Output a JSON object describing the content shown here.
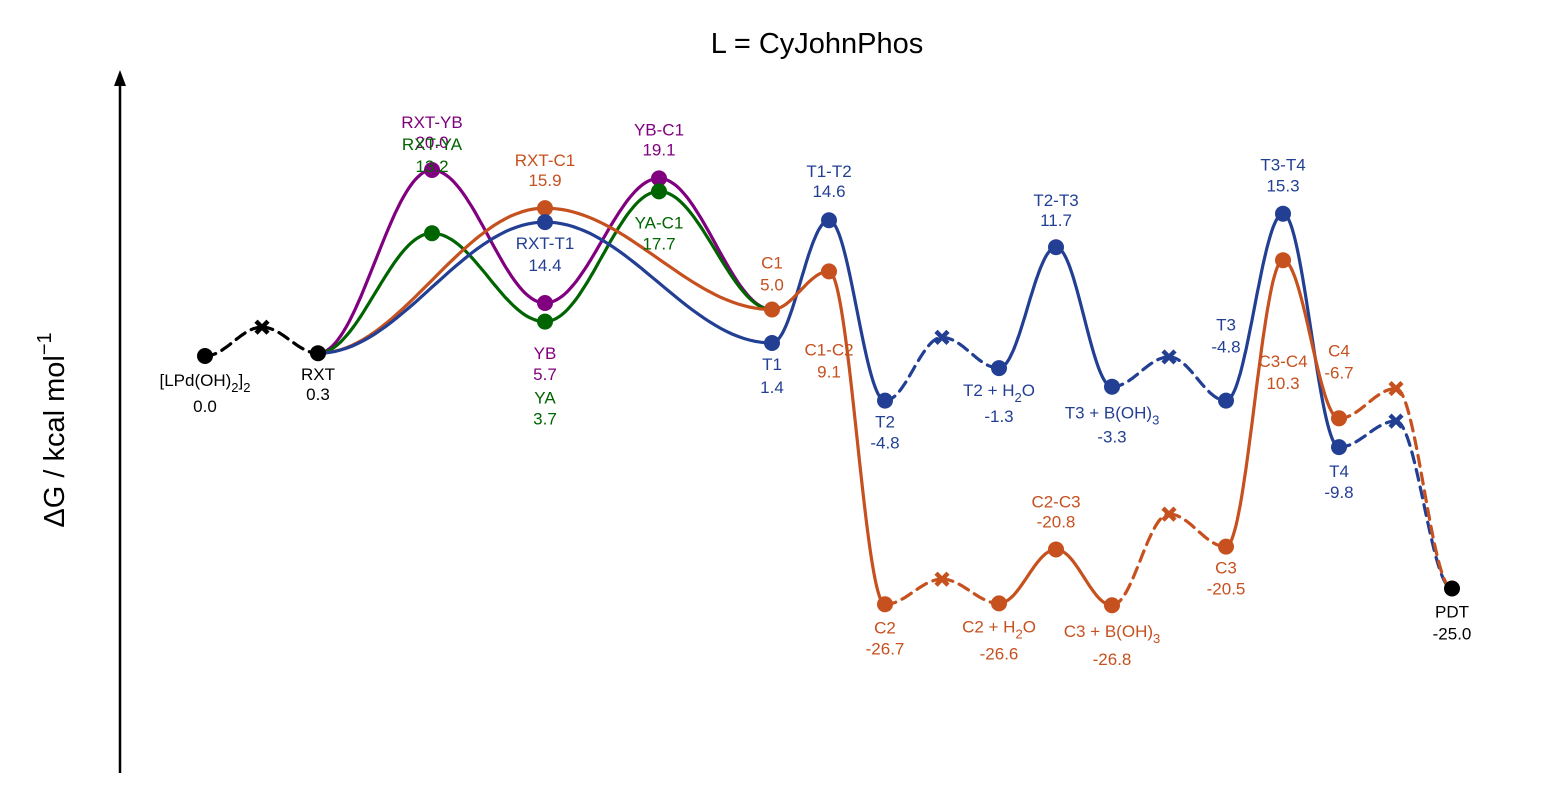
{
  "chart_data": {
    "type": "line",
    "title": "L = CyJohnPhos",
    "ylabel": "ΔG / kcal mol",
    "ylabel_superscript": "−1",
    "colors": {
      "common": "#000000",
      "blue": "#223f94",
      "orange": "#c6501e",
      "purple": "#800080",
      "green": "#006400"
    },
    "points": {
      "P0": {
        "x": 0,
        "y": 0.0
      },
      "RXT": {
        "x": 1,
        "y": 0.3
      },
      "RXTYB": {
        "x": 2,
        "y": 20.0
      },
      "RXTYA": {
        "x": 2,
        "y": 13.2
      },
      "RXTC1": {
        "x": 3,
        "y": 15.9
      },
      "RXTT1": {
        "x": 3,
        "y": 14.4
      },
      "YB": {
        "x": 3,
        "y": 5.7
      },
      "YA": {
        "x": 3,
        "y": 3.7
      },
      "YBC1": {
        "x": 4,
        "y": 19.1
      },
      "YAC1": {
        "x": 4,
        "y": 17.7
      },
      "C1": {
        "x": 5,
        "y": 5.0
      },
      "T1": {
        "x": 5,
        "y": 1.4
      },
      "T1T2": {
        "x": 5.5,
        "y": 14.6
      },
      "C1C2": {
        "x": 5.5,
        "y": 9.1
      },
      "T2": {
        "x": 6,
        "y": -4.8
      },
      "C2": {
        "x": 6,
        "y": -26.7
      },
      "T2H": {
        "x": 7,
        "y": -1.3
      },
      "C2H": {
        "x": 7,
        "y": -26.6
      },
      "T2T3": {
        "x": 7.5,
        "y": 11.7
      },
      "C2C3": {
        "x": 7.5,
        "y": -20.8
      },
      "T3B": {
        "x": 8,
        "y": -3.3
      },
      "C3B": {
        "x": 8,
        "y": -26.8
      },
      "T3": {
        "x": 9,
        "y": -4.8
      },
      "C3": {
        "x": 9,
        "y": -20.5
      },
      "T3T4": {
        "x": 9.5,
        "y": 15.3
      },
      "C3C4": {
        "x": 9.5,
        "y": 10.3
      },
      "T4": {
        "x": 10,
        "y": -9.8
      },
      "C4": {
        "x": 10,
        "y": -6.7
      },
      "PDT": {
        "x": 11,
        "y": -25.0
      }
    },
    "intermediate_points": {
      "X0": {
        "x": 0.5,
        "y": 3.1
      },
      "XT1": {
        "x": 6.5,
        "y": 2.0
      },
      "XC1": {
        "x": 6.5,
        "y": -24.0
      },
      "XT2": {
        "x": 8.5,
        "y": -0.1
      },
      "XC2": {
        "x": 8.5,
        "y": -17.0
      },
      "XT3": {
        "x": 10.5,
        "y": -7.0
      },
      "XC3": {
        "x": 10.5,
        "y": -3.5
      }
    },
    "segments": [
      {
        "from": "P0",
        "to": "X0",
        "color": "common",
        "style": "dashed"
      },
      {
        "from": "X0",
        "to": "RXT",
        "color": "common",
        "style": "dashed"
      },
      {
        "from": "RXT",
        "to": "RXTYB",
        "color": "purple",
        "style": "solid"
      },
      {
        "from": "RXTYB",
        "to": "YB",
        "color": "purple",
        "style": "solid"
      },
      {
        "from": "YB",
        "to": "YBC1",
        "color": "purple",
        "style": "solid"
      },
      {
        "from": "YBC1",
        "to": "C1",
        "color": "purple",
        "style": "solid"
      },
      {
        "from": "RXT",
        "to": "RXTYA",
        "color": "green",
        "style": "solid"
      },
      {
        "from": "RXTYA",
        "to": "YA",
        "color": "green",
        "style": "solid"
      },
      {
        "from": "YA",
        "to": "YAC1",
        "color": "green",
        "style": "solid"
      },
      {
        "from": "YAC1",
        "to": "C1",
        "color": "green",
        "style": "solid"
      },
      {
        "from": "RXT",
        "to": "RXTC1",
        "color": "orange",
        "style": "solid"
      },
      {
        "from": "RXTC1",
        "to": "C1",
        "color": "orange",
        "style": "solid"
      },
      {
        "from": "RXT",
        "to": "RXTT1",
        "color": "blue",
        "style": "solid"
      },
      {
        "from": "RXTT1",
        "to": "T1",
        "color": "blue",
        "style": "solid"
      },
      {
        "from": "T1",
        "to": "T1T2",
        "color": "blue",
        "style": "solid"
      },
      {
        "from": "T1T2",
        "to": "T2",
        "color": "blue",
        "style": "solid"
      },
      {
        "from": "T2",
        "to": "XT1",
        "color": "blue",
        "style": "dashed"
      },
      {
        "from": "XT1",
        "to": "T2H",
        "color": "blue",
        "style": "dashed"
      },
      {
        "from": "T2H",
        "to": "T2T3",
        "color": "blue",
        "style": "solid"
      },
      {
        "from": "T2T3",
        "to": "T3B",
        "color": "blue",
        "style": "solid"
      },
      {
        "from": "T3B",
        "to": "XT2",
        "color": "blue",
        "style": "dashed"
      },
      {
        "from": "XT2",
        "to": "T3",
        "color": "blue",
        "style": "dashed"
      },
      {
        "from": "T3",
        "to": "T3T4",
        "color": "blue",
        "style": "solid"
      },
      {
        "from": "T3T4",
        "to": "T4",
        "color": "blue",
        "style": "solid"
      },
      {
        "from": "T4",
        "to": "XT3",
        "color": "blue",
        "style": "dashed"
      },
      {
        "from": "XT3",
        "to": "PDT",
        "color": "blue",
        "style": "dashed"
      },
      {
        "from": "C1",
        "to": "C1C2",
        "color": "orange",
        "style": "solid"
      },
      {
        "from": "C1C2",
        "to": "C2",
        "color": "orange",
        "style": "solid"
      },
      {
        "from": "C2",
        "to": "XC1",
        "color": "orange",
        "style": "dashed"
      },
      {
        "from": "XC1",
        "to": "C2H",
        "color": "orange",
        "style": "dashed"
      },
      {
        "from": "C2H",
        "to": "C2C3",
        "color": "orange",
        "style": "solid"
      },
      {
        "from": "C2C3",
        "to": "C3B",
        "color": "orange",
        "style": "solid"
      },
      {
        "from": "C3B",
        "to": "XC2",
        "color": "orange",
        "style": "dashed"
      },
      {
        "from": "XC2",
        "to": "C3",
        "color": "orange",
        "style": "dashed"
      },
      {
        "from": "C3",
        "to": "C3C4",
        "color": "orange",
        "style": "solid"
      },
      {
        "from": "C3C4",
        "to": "C4",
        "color": "orange",
        "style": "solid"
      },
      {
        "from": "C4",
        "to": "XC3",
        "color": "orange",
        "style": "dashed"
      },
      {
        "from": "XC3",
        "to": "PDT",
        "color": "orange",
        "style": "dashed"
      }
    ],
    "markers": [
      {
        "pt": "P0",
        "color": "common",
        "shape": "circle"
      },
      {
        "pt": "RXT",
        "color": "common",
        "shape": "circle"
      },
      {
        "pt": "PDT",
        "color": "common",
        "shape": "circle"
      },
      {
        "pt": "X0",
        "color": "common",
        "shape": "cross"
      },
      {
        "pt": "RXTYB",
        "color": "purple",
        "shape": "circle"
      },
      {
        "pt": "YB",
        "color": "purple",
        "shape": "circle"
      },
      {
        "pt": "YBC1",
        "color": "purple",
        "shape": "circle"
      },
      {
        "pt": "RXTYA",
        "color": "green",
        "shape": "circle"
      },
      {
        "pt": "YA",
        "color": "green",
        "shape": "circle"
      },
      {
        "pt": "YAC1",
        "color": "green",
        "shape": "circle"
      },
      {
        "pt": "RXTC1",
        "color": "orange",
        "shape": "circle"
      },
      {
        "pt": "C1",
        "color": "orange",
        "shape": "circle"
      },
      {
        "pt": "C1C2",
        "color": "orange",
        "shape": "circle"
      },
      {
        "pt": "C2",
        "color": "orange",
        "shape": "circle"
      },
      {
        "pt": "C2H",
        "color": "orange",
        "shape": "circle"
      },
      {
        "pt": "C2C3",
        "color": "orange",
        "shape": "circle"
      },
      {
        "pt": "C3B",
        "color": "orange",
        "shape": "circle"
      },
      {
        "pt": "C3",
        "color": "orange",
        "shape": "circle"
      },
      {
        "pt": "C3C4",
        "color": "orange",
        "shape": "circle"
      },
      {
        "pt": "C4",
        "color": "orange",
        "shape": "circle"
      },
      {
        "pt": "XC1",
        "color": "orange",
        "shape": "cross"
      },
      {
        "pt": "XC2",
        "color": "orange",
        "shape": "cross"
      },
      {
        "pt": "XC3",
        "color": "orange",
        "shape": "cross"
      },
      {
        "pt": "RXTT1",
        "color": "blue",
        "shape": "circle"
      },
      {
        "pt": "T1",
        "color": "blue",
        "shape": "circle"
      },
      {
        "pt": "T1T2",
        "color": "blue",
        "shape": "circle"
      },
      {
        "pt": "T2",
        "color": "blue",
        "shape": "circle"
      },
      {
        "pt": "T2H",
        "color": "blue",
        "shape": "circle"
      },
      {
        "pt": "T2T3",
        "color": "blue",
        "shape": "circle"
      },
      {
        "pt": "T3B",
        "color": "blue",
        "shape": "circle"
      },
      {
        "pt": "T3",
        "color": "blue",
        "shape": "circle"
      },
      {
        "pt": "T3T4",
        "color": "blue",
        "shape": "circle"
      },
      {
        "pt": "T4",
        "color": "blue",
        "shape": "circle"
      },
      {
        "pt": "XT1",
        "color": "blue",
        "shape": "cross"
      },
      {
        "pt": "XT2",
        "color": "blue",
        "shape": "cross"
      },
      {
        "pt": "XT3",
        "color": "blue",
        "shape": "cross"
      }
    ],
    "labels": [
      {
        "pt": "P0",
        "color": "common",
        "name": "[LPd(OH)2]2",
        "value": "0.0"
      },
      {
        "pt": "RXT",
        "color": "common",
        "name": "RXT",
        "value": "0.3"
      },
      {
        "pt": "RXTYB",
        "color": "purple",
        "name": "RXT-YB",
        "value": "20.0"
      },
      {
        "pt": "RXTYA",
        "color": "green",
        "name": "RXT-YA",
        "value": "13.2"
      },
      {
        "pt": "RXTC1",
        "color": "orange",
        "name": "RXT-C1",
        "value": "15.9"
      },
      {
        "pt": "RXTT1",
        "color": "blue",
        "name": "RXT-T1",
        "value": "14.4"
      },
      {
        "pt": "YB",
        "color": "purple",
        "name": "YB",
        "value": "5.7"
      },
      {
        "pt": "YA",
        "color": "green",
        "name": "YA",
        "value": "3.7"
      },
      {
        "pt": "YBC1",
        "color": "purple",
        "name": "YB-C1",
        "value": "19.1"
      },
      {
        "pt": "YAC1",
        "color": "green",
        "name": "YA-C1",
        "value": "17.7"
      },
      {
        "pt": "C1",
        "color": "orange",
        "name": "C1",
        "value": "5.0"
      },
      {
        "pt": "T1",
        "color": "blue",
        "name": "T1",
        "value": "1.4"
      },
      {
        "pt": "T1T2",
        "color": "blue",
        "name": "T1-T2",
        "value": "14.6"
      },
      {
        "pt": "C1C2",
        "color": "orange",
        "name": "C1-C2",
        "value": "9.1"
      },
      {
        "pt": "T2",
        "color": "blue",
        "name": "T2",
        "value": "-4.8"
      },
      {
        "pt": "T2H",
        "color": "blue",
        "name": "T2 + H2O",
        "value": "-1.3"
      },
      {
        "pt": "T2T3",
        "color": "blue",
        "name": "T2-T3",
        "value": "11.7"
      },
      {
        "pt": "T3B",
        "color": "blue",
        "name": "T3 + B(OH)3",
        "value": "-3.3"
      },
      {
        "pt": "T3",
        "color": "blue",
        "name": "T3",
        "value": "-4.8"
      },
      {
        "pt": "T3T4",
        "color": "blue",
        "name": "T3-T4",
        "value": "15.3"
      },
      {
        "pt": "C3C4",
        "color": "orange",
        "name": "C3-C4",
        "value": "10.3"
      },
      {
        "pt": "C4",
        "color": "orange",
        "name": "C4",
        "value": "-6.7"
      },
      {
        "pt": "T4",
        "color": "blue",
        "name": "T4",
        "value": "-9.8"
      },
      {
        "pt": "C2",
        "color": "orange",
        "name": "C2",
        "value": "-26.7"
      },
      {
        "pt": "C2H",
        "color": "orange",
        "name": "C2 + H2O",
        "value": "-26.6"
      },
      {
        "pt": "C2C3",
        "color": "orange",
        "name": "C2-C3",
        "value": "-20.8"
      },
      {
        "pt": "C3B",
        "color": "orange",
        "name": "C3 + B(OH)3",
        "value": "-26.8"
      },
      {
        "pt": "C3",
        "color": "orange",
        "name": "C3",
        "value": "-20.5"
      },
      {
        "pt": "PDT",
        "color": "common",
        "name": "PDT",
        "value": "-25.0"
      }
    ]
  }
}
